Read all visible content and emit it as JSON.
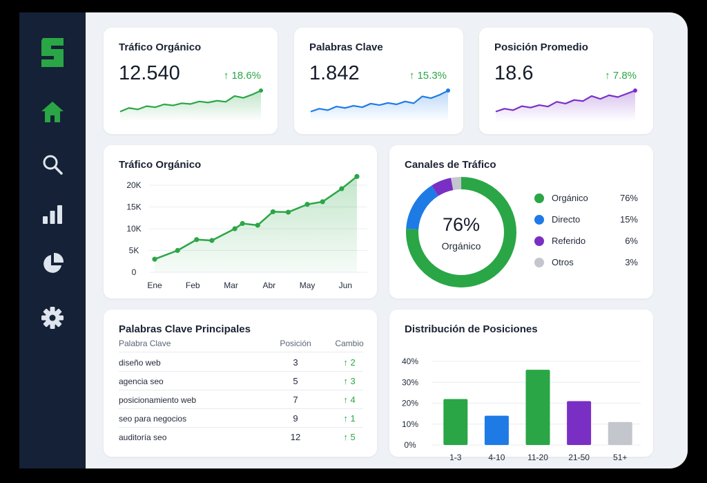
{
  "colors": {
    "green": "#2aa646",
    "blue": "#1e7be6",
    "purple": "#7a2fc4",
    "gray": "#c3c6cc",
    "sidebar": "#152136"
  },
  "sidebar": {
    "logo_letter": "S",
    "items": [
      {
        "icon": "home-icon",
        "active": true
      },
      {
        "icon": "search-icon",
        "active": false
      },
      {
        "icon": "bar-chart-icon",
        "active": false
      },
      {
        "icon": "pie-chart-icon",
        "active": false
      },
      {
        "icon": "gear-icon",
        "active": false
      }
    ]
  },
  "kpis": [
    {
      "title": "Tráfico Orgánico",
      "value": "12.540",
      "delta": "↑ 18.6%",
      "color": "#2aa646",
      "spark": [
        2,
        3,
        2.6,
        3.5,
        3.2,
        4,
        3.7,
        4.3,
        4.1,
        4.8,
        4.5,
        5,
        4.7,
        6.3,
        5.8,
        6.7,
        7.8
      ]
    },
    {
      "title": "Palabras Clave",
      "value": "1.842",
      "delta": "↑ 15.3%",
      "color": "#1e7be6",
      "spark": [
        2,
        2.8,
        2.4,
        3.4,
        3.0,
        3.6,
        3.2,
        4.2,
        3.8,
        4.4,
        4.0,
        4.8,
        4.3,
        6.2,
        5.7,
        6.6,
        7.8
      ]
    },
    {
      "title": "Posición Promedio",
      "value": "18.6",
      "delta": "↑ 7.8%",
      "color": "#7a2fc4",
      "spark": [
        2,
        2.8,
        2.4,
        3.5,
        3.1,
        3.8,
        3.4,
        4.7,
        4.2,
        5.2,
        4.9,
        6.3,
        5.5,
        6.5,
        6.0,
        6.9,
        7.8
      ]
    }
  ],
  "traffic_chart": {
    "title": "Tráfico Orgánico"
  },
  "channels_chart": {
    "title": "Canales de Tráfico",
    "center_value": "76%",
    "center_label": "Orgánico"
  },
  "keywords_table": {
    "title": "Palabras Clave Principales",
    "headers": {
      "keyword": "Palabra Clave",
      "position": "Posición",
      "change": "Cambio"
    },
    "rows": [
      {
        "keyword": "diseño web",
        "position": "3",
        "change": "↑ 2"
      },
      {
        "keyword": "agencia seo",
        "position": "5",
        "change": "↑ 3"
      },
      {
        "keyword": "posicionamiento web",
        "position": "7",
        "change": "↑ 4"
      },
      {
        "keyword": "seo para negocios",
        "position": "9",
        "change": "↑ 1"
      },
      {
        "keyword": "auditoría seo",
        "position": "12",
        "change": "↑ 5"
      }
    ]
  },
  "positions_chart": {
    "title": "Distribución de Posiciones"
  },
  "chart_data": [
    {
      "type": "area",
      "title": "Tráfico Orgánico",
      "x_ticks": [
        "Ene",
        "Feb",
        "Mar",
        "Abr",
        "May",
        "Jun"
      ],
      "y_ticks": [
        "0",
        "5K",
        "10K",
        "15K",
        "20K"
      ],
      "ylim": [
        0,
        20000
      ],
      "xlim": [
        0,
        5.5
      ],
      "grid": true,
      "points": [
        {
          "x": 0,
          "y": 3000
        },
        {
          "x": 0.6,
          "y": 5000
        },
        {
          "x": 1.1,
          "y": 7500
        },
        {
          "x": 1.5,
          "y": 7300
        },
        {
          "x": 2.1,
          "y": 10000
        },
        {
          "x": 2.3,
          "y": 11200
        },
        {
          "x": 2.7,
          "y": 10800
        },
        {
          "x": 3.1,
          "y": 13900
        },
        {
          "x": 3.5,
          "y": 13800
        },
        {
          "x": 4.0,
          "y": 15600
        },
        {
          "x": 4.4,
          "y": 16200
        },
        {
          "x": 4.9,
          "y": 19200
        },
        {
          "x": 5.3,
          "y": 22000
        }
      ]
    },
    {
      "type": "pie",
      "title": "Canales de Tráfico",
      "slices": [
        {
          "label": "Orgánico",
          "value": 76,
          "display": "76%",
          "color": "#2aa646"
        },
        {
          "label": "Directo",
          "value": 15,
          "display": "15%",
          "color": "#1e7be6"
        },
        {
          "label": "Referido",
          "value": 6,
          "display": "6%",
          "color": "#7a2fc4"
        },
        {
          "label": "Otros",
          "value": 3,
          "display": "3%",
          "color": "#c3c6cc"
        }
      ]
    },
    {
      "type": "bar",
      "title": "Distribución de Posiciones",
      "categories": [
        "1-3",
        "4-10",
        "11-20",
        "21-50",
        "51+"
      ],
      "values": [
        22,
        14,
        36,
        21,
        11
      ],
      "colors": [
        "#2aa646",
        "#1e7be6",
        "#2aa646",
        "#7a2fc4",
        "#c3c6cc"
      ],
      "y_ticks": [
        "0%",
        "10%",
        "20%",
        "30%",
        "40%"
      ],
      "ylim": [
        0,
        40
      ],
      "grid": true
    }
  ]
}
